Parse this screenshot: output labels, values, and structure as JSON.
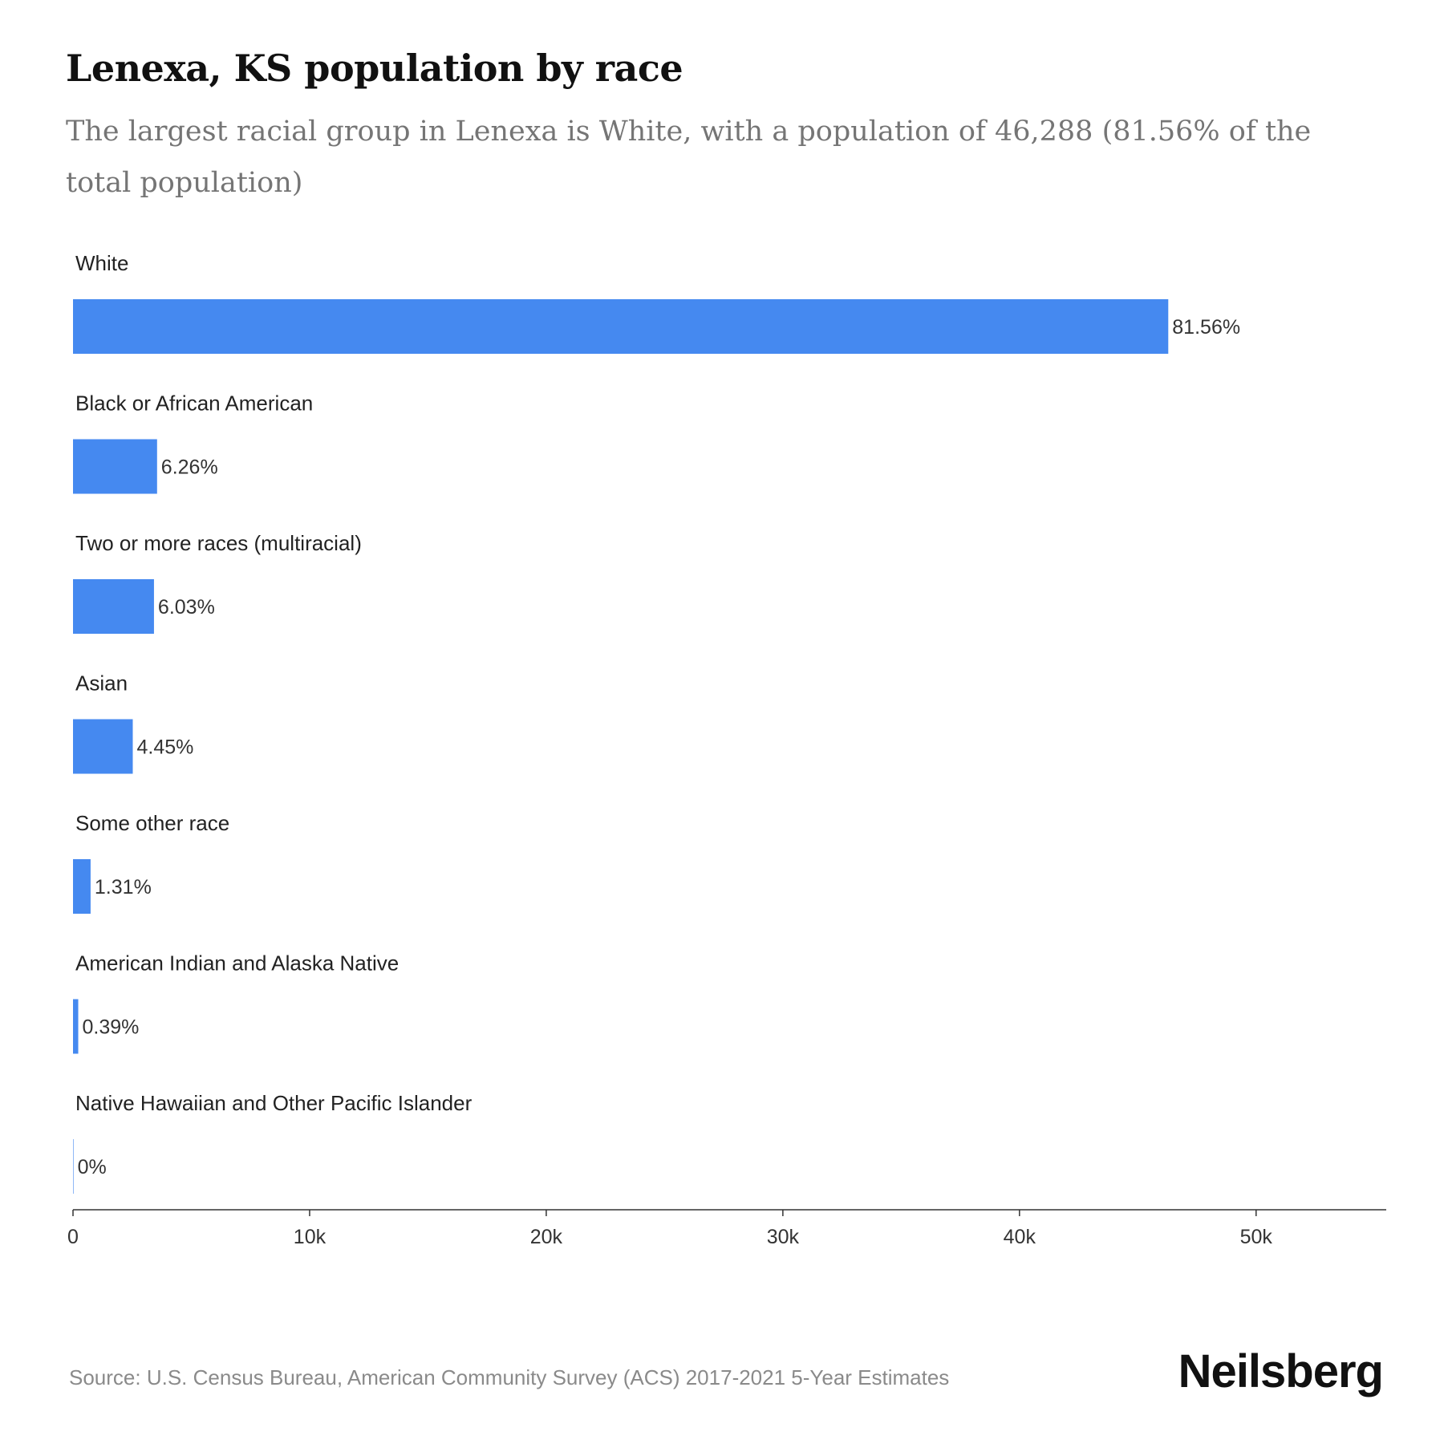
{
  "header": {
    "title": "Lenexa, KS population by race",
    "subtitle": "The largest racial group in Lenexa is White, with a population of 46,288 (81.56% of the total population)"
  },
  "chart_data": {
    "type": "bar",
    "orientation": "horizontal",
    "categories": [
      "White",
      "Black or African American",
      "Two or more races (multiracial)",
      "Asian",
      "Some other race",
      "American Indian and Alaska Native",
      "Native Hawaiian and Other Pacific Islander"
    ],
    "values": [
      46288,
      3553,
      3422,
      2526,
      743,
      221,
      0
    ],
    "value_labels": [
      "81.56%",
      "6.26%",
      "6.03%",
      "4.45%",
      "1.31%",
      "0.39%",
      "0%"
    ],
    "xlim": [
      0,
      55500
    ],
    "x_ticks": [
      0,
      10000,
      20000,
      30000,
      40000,
      50000
    ],
    "x_tick_labels": [
      "0",
      "10k",
      "20k",
      "30k",
      "40k",
      "50k"
    ],
    "bar_color": "#4589f0",
    "grid": false,
    "legend": "none"
  },
  "footer": {
    "source": "Source: U.S. Census Bureau, American Community Survey (ACS) 2017-2021 5-Year Estimates",
    "brand": "Neilsberg"
  }
}
